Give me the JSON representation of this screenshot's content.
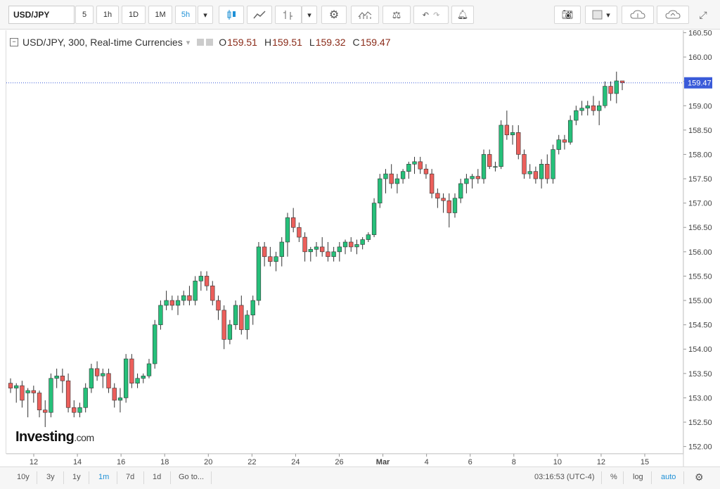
{
  "toolbar": {
    "symbol": "USD/JPY",
    "intervals": [
      "5",
      "1h",
      "1D",
      "1M",
      "5h"
    ],
    "active_interval": "5h"
  },
  "legend": {
    "title": "USD/JPY, 300, Real-time Currencies",
    "o_label": "O",
    "o_value": "159.51",
    "h_label": "H",
    "h_value": "159.51",
    "l_label": "L",
    "l_value": "159.32",
    "c_label": "C",
    "c_value": "159.47"
  },
  "logo": {
    "main": "Investing",
    "suffix": ".com"
  },
  "bottom": {
    "ranges": [
      "10y",
      "3y",
      "1y",
      "1m",
      "7d",
      "1d"
    ],
    "active_range": "1m",
    "goto": "Go to...",
    "time": "03:16:53 (UTC-4)",
    "percent": "%",
    "log": "log",
    "auto": "auto"
  },
  "colors": {
    "up": "#26c07a",
    "down": "#ec5f5b",
    "price_line": "#3a5bd9",
    "price_tag": "#3a5bd9"
  },
  "chart_data": {
    "type": "candlestick",
    "ylim": [
      151.85,
      160.55
    ],
    "yticks": [
      "160.50",
      "160.00",
      "159.50",
      "159.00",
      "158.50",
      "158.00",
      "157.50",
      "157.00",
      "156.50",
      "156.00",
      "155.50",
      "155.00",
      "154.50",
      "154.00",
      "153.50",
      "153.00",
      "152.50",
      "152.00"
    ],
    "xticks": [
      "12",
      "14",
      "16",
      "18",
      "20",
      "22",
      "24",
      "26",
      "Mar",
      "4",
      "6",
      "8",
      "10",
      "12",
      "15"
    ],
    "last_price": "159.47",
    "candles": [
      [
        153.3,
        153.4,
        153.1,
        153.2
      ],
      [
        153.2,
        153.3,
        152.9,
        153.25
      ],
      [
        153.25,
        153.35,
        152.8,
        152.95
      ],
      [
        153.1,
        153.2,
        152.6,
        153.15
      ],
      [
        153.15,
        153.25,
        152.9,
        153.1
      ],
      [
        153.1,
        153.15,
        152.6,
        152.75
      ],
      [
        152.75,
        152.95,
        152.4,
        152.7
      ],
      [
        152.7,
        153.5,
        152.6,
        153.4
      ],
      [
        153.4,
        153.6,
        153.2,
        153.45
      ],
      [
        153.45,
        153.6,
        153.1,
        153.35
      ],
      [
        153.35,
        153.5,
        152.7,
        152.8
      ],
      [
        152.8,
        152.95,
        152.6,
        152.7
      ],
      [
        152.7,
        152.9,
        152.6,
        152.8
      ],
      [
        152.8,
        153.3,
        152.7,
        153.2
      ],
      [
        153.2,
        153.7,
        153.1,
        153.6
      ],
      [
        153.6,
        153.75,
        153.35,
        153.45
      ],
      [
        153.45,
        153.6,
        153.2,
        153.5
      ],
      [
        153.5,
        153.6,
        153.1,
        153.2
      ],
      [
        153.2,
        153.3,
        152.8,
        152.95
      ],
      [
        152.95,
        153.2,
        152.7,
        153.0
      ],
      [
        153.0,
        153.9,
        152.9,
        153.8
      ],
      [
        153.8,
        153.9,
        153.2,
        153.3
      ],
      [
        153.3,
        153.5,
        153.2,
        153.4
      ],
      [
        153.4,
        153.5,
        153.3,
        153.45
      ],
      [
        153.45,
        153.8,
        153.4,
        153.7
      ],
      [
        153.7,
        154.6,
        153.6,
        154.5
      ],
      [
        154.5,
        155.0,
        154.4,
        154.9
      ],
      [
        154.9,
        155.2,
        154.8,
        155.0
      ],
      [
        155.0,
        155.1,
        154.8,
        154.9
      ],
      [
        154.9,
        155.1,
        154.7,
        155.0
      ],
      [
        155.0,
        155.2,
        154.9,
        155.1
      ],
      [
        155.1,
        155.3,
        154.9,
        155.0
      ],
      [
        155.0,
        155.5,
        154.9,
        155.4
      ],
      [
        155.4,
        155.6,
        155.2,
        155.5
      ],
      [
        155.5,
        155.6,
        155.2,
        155.3
      ],
      [
        155.3,
        155.4,
        154.9,
        155.0
      ],
      [
        155.0,
        155.1,
        154.6,
        154.8
      ],
      [
        154.8,
        154.9,
        154.0,
        154.2
      ],
      [
        154.2,
        154.6,
        154.1,
        154.5
      ],
      [
        154.5,
        155.0,
        154.4,
        154.9
      ],
      [
        154.9,
        155.1,
        154.3,
        154.4
      ],
      [
        154.4,
        154.8,
        154.2,
        154.7
      ],
      [
        154.7,
        155.1,
        154.5,
        155.0
      ],
      [
        155.0,
        156.2,
        154.9,
        156.1
      ],
      [
        156.1,
        156.2,
        155.7,
        155.9
      ],
      [
        155.9,
        156.1,
        155.7,
        155.8
      ],
      [
        155.8,
        156.0,
        155.6,
        155.9
      ],
      [
        155.9,
        156.3,
        155.7,
        156.2
      ],
      [
        156.2,
        156.8,
        155.9,
        156.7
      ],
      [
        156.7,
        156.9,
        156.4,
        156.5
      ],
      [
        156.5,
        156.6,
        156.2,
        156.3
      ],
      [
        156.3,
        156.4,
        155.8,
        156.0
      ],
      [
        156.0,
        156.1,
        155.8,
        156.05
      ],
      [
        156.05,
        156.2,
        155.9,
        156.1
      ],
      [
        156.1,
        156.3,
        155.9,
        156.0
      ],
      [
        156.0,
        156.2,
        155.8,
        155.9
      ],
      [
        155.9,
        156.1,
        155.8,
        156.0
      ],
      [
        156.0,
        156.2,
        155.8,
        156.1
      ],
      [
        156.1,
        156.25,
        155.95,
        156.2
      ],
      [
        156.2,
        156.3,
        156.0,
        156.1
      ],
      [
        156.1,
        156.25,
        155.95,
        156.15
      ],
      [
        156.15,
        156.3,
        156.05,
        156.25
      ],
      [
        156.25,
        156.4,
        156.2,
        156.35
      ],
      [
        156.35,
        157.1,
        156.3,
        157.0
      ],
      [
        157.0,
        157.6,
        156.9,
        157.5
      ],
      [
        157.5,
        157.7,
        157.2,
        157.6
      ],
      [
        157.6,
        157.8,
        157.3,
        157.4
      ],
      [
        157.4,
        157.6,
        157.2,
        157.5
      ],
      [
        157.5,
        157.7,
        157.4,
        157.65
      ],
      [
        157.65,
        157.85,
        157.5,
        157.8
      ],
      [
        157.8,
        157.95,
        157.6,
        157.85
      ],
      [
        157.85,
        157.95,
        157.6,
        157.7
      ],
      [
        157.7,
        157.8,
        157.5,
        157.6
      ],
      [
        157.6,
        157.7,
        157.1,
        157.2
      ],
      [
        157.2,
        157.3,
        156.9,
        157.1
      ],
      [
        157.1,
        157.2,
        156.8,
        157.05
      ],
      [
        157.05,
        157.2,
        156.5,
        156.8
      ],
      [
        156.8,
        157.2,
        156.7,
        157.1
      ],
      [
        157.1,
        157.5,
        157.0,
        157.4
      ],
      [
        157.4,
        157.6,
        157.2,
        157.5
      ],
      [
        157.5,
        157.6,
        157.3,
        157.55
      ],
      [
        157.55,
        157.7,
        157.4,
        157.5
      ],
      [
        157.5,
        158.1,
        157.4,
        158.0
      ],
      [
        158.0,
        158.1,
        157.7,
        157.75
      ],
      [
        157.75,
        157.85,
        157.65,
        157.75
      ],
      [
        157.75,
        158.7,
        157.7,
        158.6
      ],
      [
        158.6,
        158.9,
        158.3,
        158.4
      ],
      [
        158.4,
        158.6,
        158.2,
        158.45
      ],
      [
        158.45,
        158.6,
        157.9,
        158.0
      ],
      [
        158.0,
        158.1,
        157.5,
        157.6
      ],
      [
        157.6,
        157.8,
        157.5,
        157.65
      ],
      [
        157.65,
        157.75,
        157.4,
        157.5
      ],
      [
        157.5,
        157.9,
        157.3,
        157.8
      ],
      [
        157.8,
        158.0,
        157.4,
        157.5
      ],
      [
        157.5,
        158.2,
        157.4,
        158.1
      ],
      [
        158.1,
        158.4,
        158.0,
        158.3
      ],
      [
        158.3,
        158.4,
        158.1,
        158.25
      ],
      [
        158.25,
        158.8,
        158.2,
        158.7
      ],
      [
        158.7,
        159.0,
        158.6,
        158.9
      ],
      [
        158.9,
        159.1,
        158.8,
        158.95
      ],
      [
        158.95,
        159.1,
        158.8,
        159.0
      ],
      [
        159.0,
        159.2,
        158.8,
        158.9
      ],
      [
        158.9,
        159.1,
        158.6,
        159.0
      ],
      [
        159.0,
        159.5,
        158.95,
        159.4
      ],
      [
        159.4,
        159.5,
        159.1,
        159.25
      ],
      [
        159.25,
        159.7,
        159.05,
        159.51
      ],
      [
        159.51,
        159.51,
        159.32,
        159.47
      ]
    ]
  }
}
